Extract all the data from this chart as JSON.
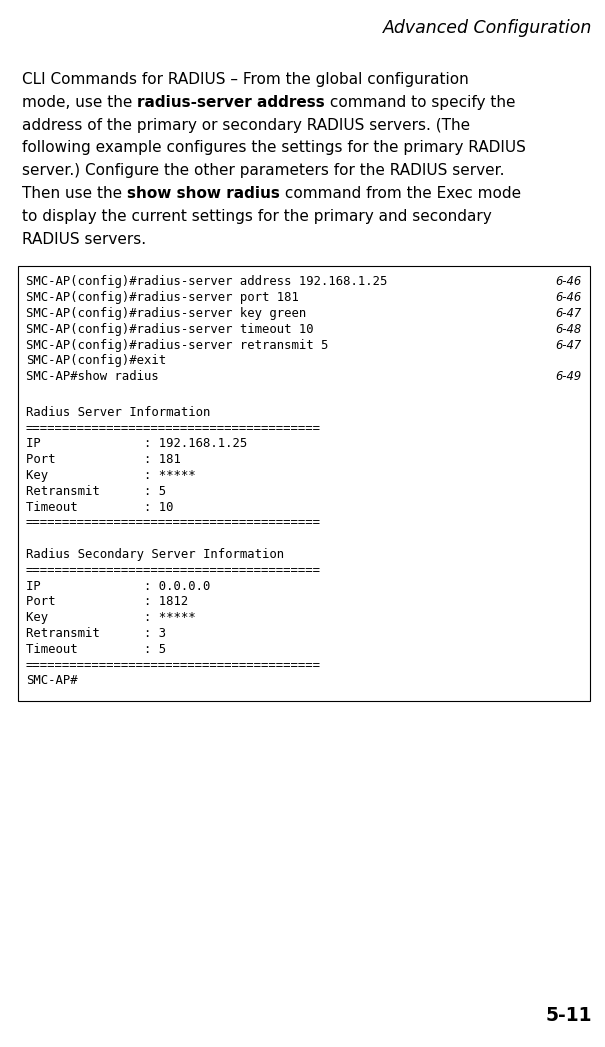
{
  "page_title": "Advanced Configuration",
  "page_number": "5-11",
  "para_lines": [
    [
      [
        "CLI Commands for RADIUS – From the global configuration",
        false
      ]
    ],
    [
      [
        "mode, use the ",
        false
      ],
      [
        "radius-server address",
        true
      ],
      [
        " command to specify the",
        false
      ]
    ],
    [
      [
        "address of the primary or secondary RADIUS servers. (The",
        false
      ]
    ],
    [
      [
        "following example configures the settings for the primary RADIUS",
        false
      ]
    ],
    [
      [
        "server.) Configure the other parameters for the RADIUS server.",
        false
      ]
    ],
    [
      [
        "Then use the ",
        false
      ],
      [
        "show show radius",
        true
      ],
      [
        " command from the Exec mode",
        false
      ]
    ],
    [
      [
        "to display the current settings for the primary and secondary",
        false
      ]
    ],
    [
      [
        "RADIUS servers.",
        false
      ]
    ]
  ],
  "code_lines": [
    {
      "text": "SMC-AP(config)#radius-server address 192.168.1.25",
      "ref": "6-46"
    },
    {
      "text": "SMC-AP(config)#radius-server port 181",
      "ref": "6-46"
    },
    {
      "text": "SMC-AP(config)#radius-server key green",
      "ref": "6-47"
    },
    {
      "text": "SMC-AP(config)#radius-server timeout 10",
      "ref": "6-48"
    },
    {
      "text": "SMC-AP(config)#radius-server retransmit 5",
      "ref": "6-47"
    },
    {
      "text": "SMC-AP(config)#exit",
      "ref": ""
    },
    {
      "text": "SMC-AP#show radius",
      "ref": "6-49"
    }
  ],
  "output_lines": [
    "",
    "Radius Server Information",
    "========================================",
    "IP              : 192.168.1.25",
    "Port            : 181",
    "Key             : *****",
    "Retransmit      : 5",
    "Timeout         : 10",
    "========================================",
    "",
    "Radius Secondary Server Information",
    "========================================",
    "IP              : 0.0.0.0",
    "Port            : 1812",
    "Key             : *****",
    "Retransmit      : 3",
    "Timeout         : 5",
    "========================================",
    "SMC-AP#"
  ],
  "bg_color": "#ffffff",
  "text_color": "#000000",
  "title_font_size": 12.5,
  "body_font_size": 11.0,
  "code_font_size": 8.8,
  "page_num_font_size": 13.5
}
